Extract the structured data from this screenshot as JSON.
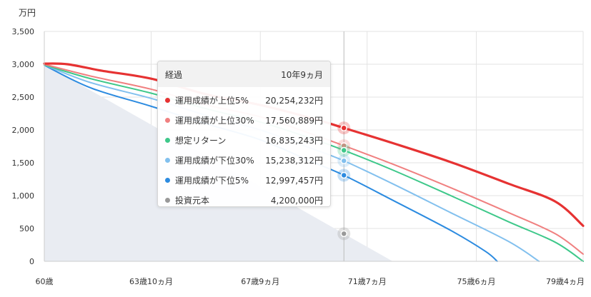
{
  "unit_label": "万円",
  "chart_data": {
    "type": "line",
    "ylim": [
      0,
      3500
    ],
    "yticks": [
      0,
      500,
      1000,
      1500,
      2000,
      2500,
      3000,
      3500
    ],
    "ytick_labels": [
      "0",
      "500",
      "1,000",
      "1,500",
      "2,000",
      "2,500",
      "3,000",
      "3,500"
    ],
    "xlim_months": [
      0,
      232
    ],
    "xticks": [
      {
        "age_months": 0,
        "label": "60歳"
      },
      {
        "age_months": 46,
        "label": "63歳10ヵ月"
      },
      {
        "age_months": 93,
        "label": "67歳9ヵ月"
      },
      {
        "age_months": 139,
        "label": "71歳7ヵ月"
      },
      {
        "age_months": 186,
        "label": "75歳6ヵ月"
      },
      {
        "age_months": 232,
        "label": "79歳4ヵ月"
      }
    ],
    "hover_months": 129,
    "series": [
      {
        "name": "運用成績が上位5%",
        "color": "#e63232",
        "width": 3.2,
        "points": [
          [
            0,
            3010
          ],
          [
            10,
            3000
          ],
          [
            25,
            2900
          ],
          [
            46,
            2780
          ],
          [
            70,
            2540
          ],
          [
            93,
            2380
          ],
          [
            115,
            2180
          ],
          [
            129,
            2030
          ],
          [
            150,
            1800
          ],
          [
            175,
            1510
          ],
          [
            200,
            1180
          ],
          [
            220,
            910
          ],
          [
            232,
            540
          ]
        ]
      },
      {
        "name": "運用成績が上位30%",
        "color": "#f08080",
        "width": 2,
        "points": [
          [
            0,
            3000
          ],
          [
            20,
            2820
          ],
          [
            46,
            2620
          ],
          [
            70,
            2380
          ],
          [
            93,
            2200
          ],
          [
            115,
            1940
          ],
          [
            129,
            1760
          ],
          [
            150,
            1480
          ],
          [
            175,
            1120
          ],
          [
            200,
            740
          ],
          [
            220,
            420
          ],
          [
            232,
            110
          ]
        ]
      },
      {
        "name": "想定リターン",
        "color": "#3ec88a",
        "width": 2,
        "points": [
          [
            0,
            2990
          ],
          [
            20,
            2780
          ],
          [
            46,
            2560
          ],
          [
            70,
            2320
          ],
          [
            93,
            2120
          ],
          [
            115,
            1870
          ],
          [
            129,
            1690
          ],
          [
            150,
            1390
          ],
          [
            175,
            1000
          ],
          [
            200,
            600
          ],
          [
            220,
            290
          ],
          [
            232,
            0
          ]
        ]
      },
      {
        "name": "運用成績が下位30%",
        "color": "#82c0ee",
        "width": 2,
        "points": [
          [
            0,
            2990
          ],
          [
            20,
            2720
          ],
          [
            46,
            2480
          ],
          [
            70,
            2220
          ],
          [
            93,
            2000
          ],
          [
            115,
            1720
          ],
          [
            129,
            1530
          ],
          [
            150,
            1180
          ],
          [
            175,
            740
          ],
          [
            200,
            300
          ],
          [
            213,
            0
          ]
        ]
      },
      {
        "name": "運用成績が下位5%",
        "color": "#2c8be0",
        "width": 2,
        "points": [
          [
            0,
            2985
          ],
          [
            20,
            2640
          ],
          [
            46,
            2360
          ],
          [
            70,
            2090
          ],
          [
            93,
            1850
          ],
          [
            115,
            1520
          ],
          [
            129,
            1310
          ],
          [
            150,
            930
          ],
          [
            175,
            470
          ],
          [
            190,
            150
          ],
          [
            195,
            0
          ]
        ]
      }
    ],
    "principal": {
      "name": "投資元本",
      "color": "#999999",
      "points": [
        [
          0,
          3000
        ],
        [
          129,
          420
        ],
        [
          150,
          0
        ]
      ]
    },
    "tooltip": {
      "title": "経過",
      "title_value": "10年9ヵ月",
      "rows": [
        {
          "name": "運用成績が上位5%",
          "value": "20,254,232円",
          "color": "#e63232"
        },
        {
          "name": "運用成績が上位30%",
          "value": "17,560,889円",
          "color": "#f08080"
        },
        {
          "name": "想定リターン",
          "value": "16,835,243円",
          "color": "#3ec88a"
        },
        {
          "name": "運用成績が下位30%",
          "value": "15,238,312円",
          "color": "#82c0ee"
        },
        {
          "name": "運用成績が下位5%",
          "value": "12,997,457円",
          "color": "#2c8be0"
        },
        {
          "name": "投資元本",
          "value": "4,200,000円",
          "color": "#999999"
        }
      ]
    }
  }
}
